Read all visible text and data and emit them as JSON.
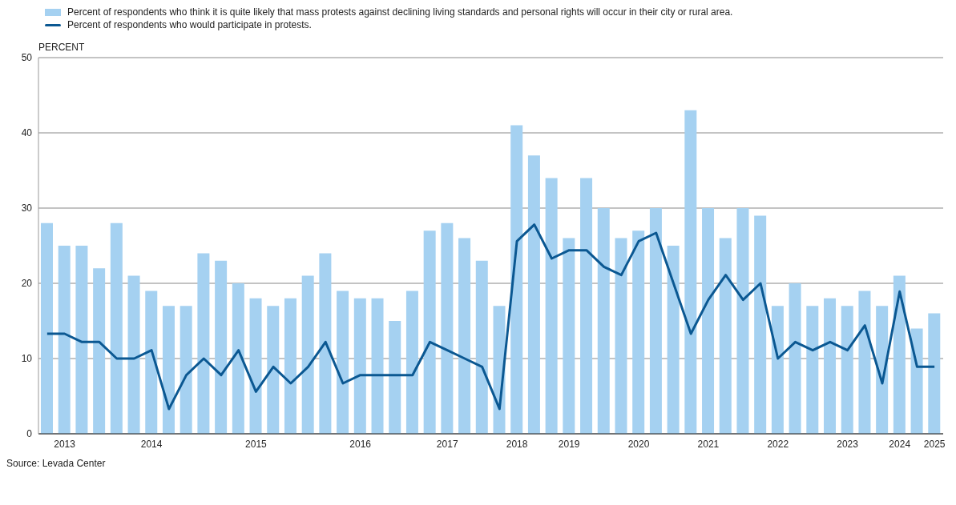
{
  "chart_data": {
    "type": "bar",
    "ylabel": "PERCENT",
    "categories": [
      null,
      "2013",
      null,
      null,
      null,
      null,
      "2014",
      null,
      null,
      null,
      null,
      null,
      "2015",
      null,
      null,
      null,
      null,
      null,
      "2016",
      null,
      null,
      null,
      null,
      "2017",
      null,
      null,
      null,
      "2018",
      null,
      null,
      "2019",
      null,
      null,
      null,
      "2020",
      null,
      null,
      null,
      "2021",
      null,
      null,
      null,
      "2022",
      null,
      null,
      null,
      "2023",
      null,
      null,
      "2024",
      null,
      "2025"
    ],
    "series": [
      {
        "name": "Percent of respondents who think it is quite likely that mass protests against declining living standards and personal rights will occur in their city or rural area.",
        "color": "#a5d1f1",
        "values": [
          28,
          25,
          25,
          22,
          28,
          21,
          19,
          17,
          17,
          24,
          23,
          20,
          18,
          17,
          18,
          21,
          24,
          19,
          18,
          18,
          15,
          19,
          27,
          28,
          26,
          23,
          17,
          41,
          37,
          34,
          26,
          34,
          30,
          26,
          27,
          30,
          25,
          43,
          30,
          26,
          30,
          29,
          17,
          20,
          17,
          18,
          17,
          19,
          17,
          21,
          14,
          16
        ]
      },
      {
        "type": "line",
        "name": "Percent of respondents who would participate in protests.",
        "color": "#0b5892",
        "values": [
          13.3,
          13.3,
          12.2,
          12.2,
          10,
          10,
          11.1,
          3.3,
          7.8,
          10,
          7.8,
          11.1,
          5.6,
          8.9,
          6.7,
          8.9,
          12.2,
          6.7,
          7.8,
          7.8,
          7.8,
          7.8,
          12.2,
          11.1,
          10,
          8.9,
          3.3,
          25.6,
          27.8,
          23.3,
          24.4,
          24.4,
          22.2,
          21.1,
          25.6,
          26.7,
          20,
          13.3,
          17.8,
          21.1,
          17.8,
          20,
          10,
          12.2,
          11.1,
          12.2,
          11.1,
          14.4,
          6.7,
          18.9,
          8.9,
          8.9
        ]
      }
    ],
    "ylim": [
      0,
      50
    ],
    "yticks": [
      0,
      10,
      20,
      30,
      40,
      50
    ],
    "grid": "y",
    "legend": "top left",
    "marker": "none",
    "annotations": [
      "Source: Levada Center"
    ]
  }
}
